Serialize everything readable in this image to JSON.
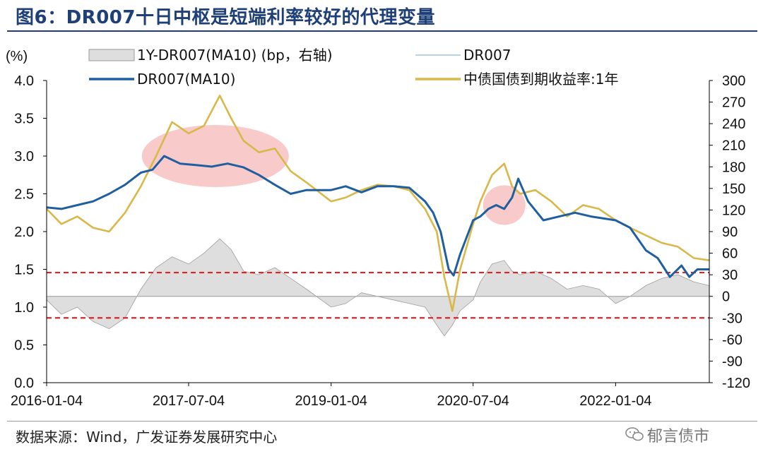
{
  "title": "图6：DR007十日中枢是短端利率较好的代理变量",
  "source": "数据来源：Wind，广发证券发展研究中心",
  "watermark": "郁言债市",
  "watermark_icon": "wechat-icon",
  "chart_data": {
    "type": "line",
    "ylabel_left": "(%)",
    "ylim_left": [
      0.0,
      4.0
    ],
    "yticks_left": [
      "0.0",
      "0.5",
      "1.0",
      "1.5",
      "2.0",
      "2.5",
      "3.0",
      "3.5",
      "4.0"
    ],
    "ylim_right": [
      -120,
      300
    ],
    "yticks_right": [
      "-120",
      "-90",
      "-60",
      "-30",
      "0",
      "30",
      "60",
      "90",
      "120",
      "150",
      "180",
      "210",
      "240",
      "270",
      "300"
    ],
    "xlim": [
      "2016-01-04",
      "2022-12-31"
    ],
    "xticks": [
      "2016-01-04",
      "2017-07-04",
      "2019-01-04",
      "2020-07-04",
      "2022-01-04"
    ],
    "legend": [
      "1Y-DR007(MA10) (bp，右轴)",
      "DR007",
      "DR007(MA10)",
      "中债国债到期收益率:1年"
    ],
    "series": [
      {
        "name": "DR007(MA10)",
        "color": "#1f5fa0",
        "axis": "left",
        "points": [
          [
            "2016-01-04",
            2.32
          ],
          [
            "2016-03-01",
            2.3
          ],
          [
            "2016-05-01",
            2.35
          ],
          [
            "2016-07-01",
            2.4
          ],
          [
            "2016-09-01",
            2.5
          ],
          [
            "2016-11-01",
            2.62
          ],
          [
            "2017-01-01",
            2.78
          ],
          [
            "2017-02-15",
            2.82
          ],
          [
            "2017-04-01",
            3.0
          ],
          [
            "2017-06-01",
            2.9
          ],
          [
            "2017-08-01",
            2.88
          ],
          [
            "2017-10-01",
            2.86
          ],
          [
            "2017-12-01",
            2.9
          ],
          [
            "2018-02-01",
            2.85
          ],
          [
            "2018-04-01",
            2.75
          ],
          [
            "2018-06-01",
            2.62
          ],
          [
            "2018-08-01",
            2.5
          ],
          [
            "2018-10-01",
            2.55
          ],
          [
            "2019-01-04",
            2.55
          ],
          [
            "2019-03-01",
            2.6
          ],
          [
            "2019-05-01",
            2.52
          ],
          [
            "2019-07-01",
            2.6
          ],
          [
            "2019-09-01",
            2.6
          ],
          [
            "2019-11-01",
            2.58
          ],
          [
            "2020-01-01",
            2.4
          ],
          [
            "2020-02-01",
            2.25
          ],
          [
            "2020-03-01",
            2.0
          ],
          [
            "2020-04-01",
            1.5
          ],
          [
            "2020-04-20",
            1.42
          ],
          [
            "2020-05-15",
            1.7
          ],
          [
            "2020-07-04",
            2.15
          ],
          [
            "2020-08-01",
            2.2
          ],
          [
            "2020-09-01",
            2.3
          ],
          [
            "2020-10-01",
            2.35
          ],
          [
            "2020-11-01",
            2.3
          ],
          [
            "2020-12-01",
            2.45
          ],
          [
            "2020-12-25",
            2.7
          ],
          [
            "2021-02-01",
            2.4
          ],
          [
            "2021-04-01",
            2.15
          ],
          [
            "2021-06-01",
            2.2
          ],
          [
            "2021-08-01",
            2.25
          ],
          [
            "2021-10-01",
            2.2
          ],
          [
            "2022-01-04",
            2.15
          ],
          [
            "2022-03-01",
            2.05
          ],
          [
            "2022-05-01",
            1.75
          ],
          [
            "2022-06-15",
            1.65
          ],
          [
            "2022-08-01",
            1.4
          ],
          [
            "2022-09-15",
            1.55
          ],
          [
            "2022-10-15",
            1.4
          ],
          [
            "2022-11-15",
            1.5
          ],
          [
            "2022-12-31",
            1.5
          ]
        ]
      },
      {
        "name": "中债国债到期收益率:1年",
        "color": "#d9b84a",
        "axis": "left",
        "points": [
          [
            "2016-01-04",
            2.3
          ],
          [
            "2016-03-01",
            2.1
          ],
          [
            "2016-05-01",
            2.2
          ],
          [
            "2016-07-01",
            2.05
          ],
          [
            "2016-09-01",
            2.0
          ],
          [
            "2016-11-01",
            2.25
          ],
          [
            "2017-01-01",
            2.6
          ],
          [
            "2017-03-01",
            3.0
          ],
          [
            "2017-05-01",
            3.45
          ],
          [
            "2017-07-04",
            3.3
          ],
          [
            "2017-09-01",
            3.4
          ],
          [
            "2017-11-01",
            3.8
          ],
          [
            "2017-12-15",
            3.5
          ],
          [
            "2018-02-01",
            3.2
          ],
          [
            "2018-04-01",
            3.05
          ],
          [
            "2018-06-01",
            3.1
          ],
          [
            "2018-08-01",
            2.8
          ],
          [
            "2018-10-01",
            2.65
          ],
          [
            "2019-01-04",
            2.4
          ],
          [
            "2019-03-01",
            2.45
          ],
          [
            "2019-05-01",
            2.55
          ],
          [
            "2019-07-01",
            2.62
          ],
          [
            "2019-09-01",
            2.6
          ],
          [
            "2019-11-01",
            2.55
          ],
          [
            "2020-01-01",
            2.3
          ],
          [
            "2020-02-15",
            2.0
          ],
          [
            "2020-03-15",
            1.4
          ],
          [
            "2020-04-15",
            0.95
          ],
          [
            "2020-05-15",
            1.5
          ],
          [
            "2020-07-04",
            2.1
          ],
          [
            "2020-08-01",
            2.4
          ],
          [
            "2020-09-15",
            2.75
          ],
          [
            "2020-11-01",
            2.9
          ],
          [
            "2020-12-01",
            2.6
          ],
          [
            "2021-01-01",
            2.5
          ],
          [
            "2021-03-01",
            2.55
          ],
          [
            "2021-05-01",
            2.4
          ],
          [
            "2021-07-01",
            2.2
          ],
          [
            "2021-09-01",
            2.35
          ],
          [
            "2021-11-01",
            2.3
          ],
          [
            "2022-01-04",
            2.15
          ],
          [
            "2022-03-01",
            2.05
          ],
          [
            "2022-05-01",
            1.95
          ],
          [
            "2022-07-01",
            1.85
          ],
          [
            "2022-09-01",
            1.8
          ],
          [
            "2022-11-01",
            1.65
          ],
          [
            "2022-12-31",
            1.62
          ]
        ]
      },
      {
        "name": "1Y-DR007(MA10) (bp，右轴)",
        "color": "#9e9e9e",
        "fill": "#dedede",
        "axis": "right",
        "baseline": 0,
        "points": [
          [
            "2016-01-04",
            -5
          ],
          [
            "2016-03-01",
            -25
          ],
          [
            "2016-05-01",
            -15
          ],
          [
            "2016-07-01",
            -35
          ],
          [
            "2016-09-01",
            -45
          ],
          [
            "2016-11-01",
            -30
          ],
          [
            "2017-01-01",
            10
          ],
          [
            "2017-03-01",
            40
          ],
          [
            "2017-05-01",
            55
          ],
          [
            "2017-07-04",
            45
          ],
          [
            "2017-09-01",
            60
          ],
          [
            "2017-11-01",
            80
          ],
          [
            "2017-12-15",
            65
          ],
          [
            "2018-02-01",
            35
          ],
          [
            "2018-04-01",
            30
          ],
          [
            "2018-06-01",
            40
          ],
          [
            "2018-08-01",
            25
          ],
          [
            "2018-10-01",
            10
          ],
          [
            "2019-01-04",
            -15
          ],
          [
            "2019-03-01",
            -10
          ],
          [
            "2019-05-01",
            5
          ],
          [
            "2019-07-01",
            0
          ],
          [
            "2019-09-01",
            -5
          ],
          [
            "2019-11-01",
            -10
          ],
          [
            "2020-01-01",
            -15
          ],
          [
            "2020-02-15",
            -40
          ],
          [
            "2020-03-15",
            -55
          ],
          [
            "2020-04-15",
            -40
          ],
          [
            "2020-05-15",
            -20
          ],
          [
            "2020-07-04",
            -5
          ],
          [
            "2020-08-01",
            20
          ],
          [
            "2020-09-15",
            45
          ],
          [
            "2020-11-01",
            50
          ],
          [
            "2020-12-01",
            35
          ],
          [
            "2021-01-01",
            30
          ],
          [
            "2021-03-01",
            35
          ],
          [
            "2021-05-01",
            25
          ],
          [
            "2021-07-01",
            10
          ],
          [
            "2021-09-01",
            15
          ],
          [
            "2021-11-01",
            10
          ],
          [
            "2022-01-04",
            -10
          ],
          [
            "2022-03-01",
            0
          ],
          [
            "2022-05-01",
            15
          ],
          [
            "2022-07-01",
            25
          ],
          [
            "2022-09-01",
            30
          ],
          [
            "2022-11-01",
            20
          ],
          [
            "2022-12-31",
            15
          ]
        ]
      }
    ],
    "reference_lines": [
      {
        "axis": "right",
        "value": 33,
        "color": "#e32222",
        "style": "dashed"
      },
      {
        "axis": "right",
        "value": -30,
        "color": "#e32222",
        "style": "dashed"
      }
    ],
    "highlights": [
      {
        "x_center": "2017-10-15",
        "y_center_left": 3.0,
        "color": "#f4a7a7"
      },
      {
        "x_center": "2020-11-01",
        "y_center_left": 2.35,
        "color": "#f4a7a7"
      }
    ]
  }
}
